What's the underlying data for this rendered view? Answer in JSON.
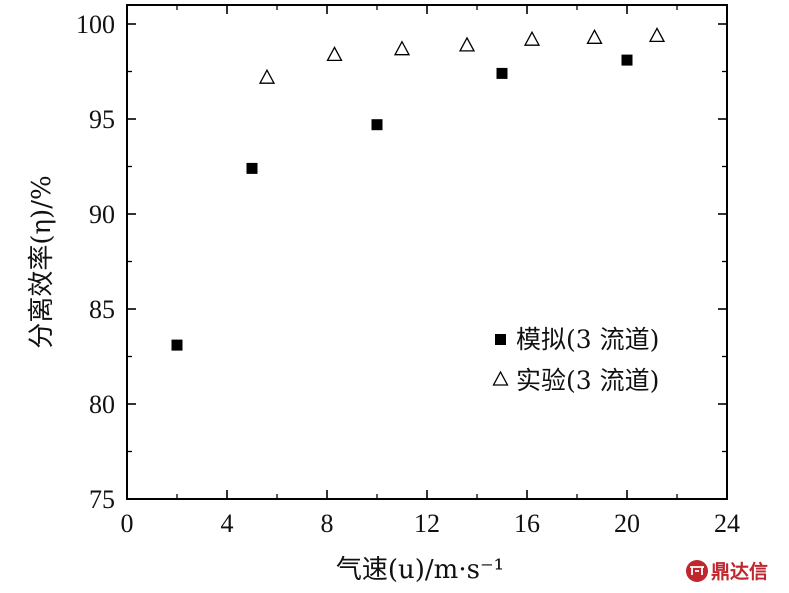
{
  "chart_data": {
    "type": "scatter",
    "xlabel": "气速(u)/m·s⁻¹",
    "ylabel": "分离效率(η)/%",
    "xlim": [
      0,
      24
    ],
    "ylim": [
      75,
      101
    ],
    "xticks": [
      0,
      4,
      8,
      12,
      16,
      20,
      24
    ],
    "yticks": [
      75,
      80,
      85,
      90,
      95,
      100
    ],
    "legend_position": "right",
    "series": [
      {
        "name": "模拟(3 流道)",
        "marker": "filled-square",
        "color": "#000000",
        "x": [
          2,
          5,
          10,
          15,
          20
        ],
        "y": [
          83.1,
          92.4,
          94.7,
          97.4,
          98.1
        ]
      },
      {
        "name": "实验(3 流道)",
        "marker": "hollow-triangle",
        "color": "#000000",
        "x": [
          5.6,
          8.3,
          11,
          13.6,
          16.2,
          18.7,
          21.2
        ],
        "y": [
          97.2,
          98.4,
          98.7,
          98.9,
          99.2,
          99.3,
          99.4
        ]
      }
    ]
  },
  "watermark": {
    "text": "鼎达信",
    "color": "#c0262d"
  }
}
